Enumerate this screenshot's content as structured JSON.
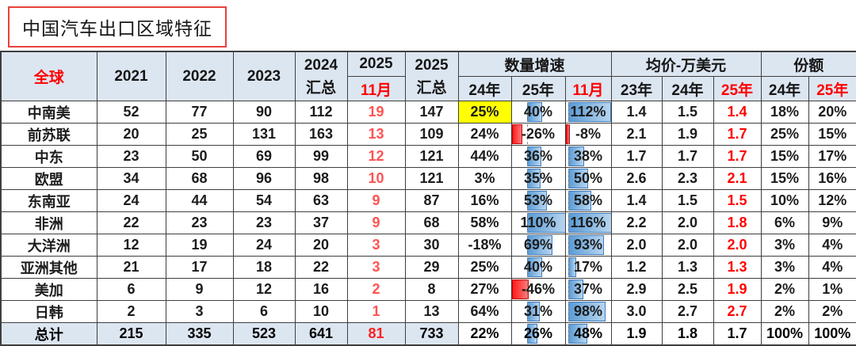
{
  "title": "中国汽车出口区域特征",
  "colors": {
    "header_bg": "#dce6f1",
    "border": "#3f3f3f",
    "red": "#ff0000",
    "soft_red": "#ff5252",
    "bar_blue": "#5b9bd5",
    "bar_blue_light": "#b7d5ef",
    "bar_border": "#3e7cc0",
    "bar_red": "#ff1a1a",
    "highlight": "#ffff00",
    "title_border": "#e8413c"
  },
  "chart_data": {
    "type": "table",
    "title": "中国汽车出口区域特征",
    "header": {
      "region": "全球",
      "y2021": "2021",
      "y2022": "2022",
      "y2023": "2023",
      "c2024_l1": "2024",
      "c2024_l2": "汇总",
      "c2025nov_l1": "2025",
      "c2025nov_l2": "11月",
      "c2025_l1": "2025",
      "c2025_l2": "汇总",
      "growth_group": "数量增速",
      "growth_cols": [
        "24年",
        "25年",
        "11月"
      ],
      "price_group": "均价-万美元",
      "price_cols": [
        "23年",
        "24年",
        "25年"
      ],
      "share_group": "份额",
      "share_cols": [
        "24年",
        "25年"
      ]
    },
    "bar_ranges": {
      "g25": {
        "min": -46,
        "max": 110
      },
      "gNov": {
        "min": -8,
        "max": 116
      }
    },
    "rows": [
      {
        "region": "中南美",
        "y2021": "52",
        "y2022": "77",
        "y2023": "90",
        "y2024": "112",
        "nov": "19",
        "y2025": "147",
        "g24": "25%",
        "g25": "40%",
        "gNov": "112%",
        "p23": "1.4",
        "p24": "1.5",
        "p25": "1.4",
        "s24": "18%",
        "s25": "20%",
        "hl_g24": true
      },
      {
        "region": "前苏联",
        "y2021": "20",
        "y2022": "25",
        "y2023": "131",
        "y2024": "163",
        "nov": "13",
        "y2025": "109",
        "g24": "24%",
        "g25": "-26%",
        "gNov": "-8%",
        "p23": "2.1",
        "p24": "1.9",
        "p25": "1.7",
        "s24": "25%",
        "s25": "15%"
      },
      {
        "region": "中东",
        "y2021": "23",
        "y2022": "50",
        "y2023": "69",
        "y2024": "99",
        "nov": "12",
        "y2025": "121",
        "g24": "44%",
        "g25": "36%",
        "gNov": "38%",
        "p23": "1.7",
        "p24": "1.7",
        "p25": "1.7",
        "s24": "15%",
        "s25": "17%"
      },
      {
        "region": "欧盟",
        "y2021": "34",
        "y2022": "68",
        "y2023": "96",
        "y2024": "98",
        "nov": "10",
        "y2025": "121",
        "g24": "3%",
        "g25": "35%",
        "gNov": "50%",
        "p23": "2.6",
        "p24": "2.3",
        "p25": "2.1",
        "s24": "15%",
        "s25": "16%"
      },
      {
        "region": "东南亚",
        "y2021": "24",
        "y2022": "44",
        "y2023": "54",
        "y2024": "63",
        "nov": "9",
        "y2025": "87",
        "g24": "16%",
        "g25": "53%",
        "gNov": "58%",
        "p23": "1.4",
        "p24": "1.5",
        "p25": "1.5",
        "s24": "10%",
        "s25": "12%"
      },
      {
        "region": "非洲",
        "y2021": "22",
        "y2022": "23",
        "y2023": "23",
        "y2024": "37",
        "nov": "9",
        "y2025": "68",
        "g24": "58%",
        "g25": "110%",
        "gNov": "116%",
        "p23": "2.2",
        "p24": "2.0",
        "p25": "1.8",
        "s24": "6%",
        "s25": "9%"
      },
      {
        "region": "大洋洲",
        "y2021": "12",
        "y2022": "19",
        "y2023": "24",
        "y2024": "20",
        "nov": "3",
        "y2025": "30",
        "g24": "-18%",
        "g25": "69%",
        "gNov": "93%",
        "p23": "2.0",
        "p24": "2.0",
        "p25": "2.0",
        "s24": "3%",
        "s25": "4%"
      },
      {
        "region": "亚洲其他",
        "y2021": "21",
        "y2022": "17",
        "y2023": "18",
        "y2024": "22",
        "nov": "3",
        "y2025": "29",
        "g24": "25%",
        "g25": "40%",
        "gNov": "17%",
        "p23": "1.2",
        "p24": "1.3",
        "p25": "1.3",
        "s24": "3%",
        "s25": "4%"
      },
      {
        "region": "美加",
        "y2021": "6",
        "y2022": "9",
        "y2023": "12",
        "y2024": "16",
        "nov": "2",
        "y2025": "8",
        "g24": "27%",
        "g25": "-46%",
        "gNov": "37%",
        "p23": "2.9",
        "p24": "2.5",
        "p25": "1.9",
        "s24": "2%",
        "s25": "1%"
      },
      {
        "region": "日韩",
        "y2021": "2",
        "y2022": "3",
        "y2023": "6",
        "y2024": "10",
        "nov": "1",
        "y2025": "13",
        "g24": "64%",
        "g25": "31%",
        "gNov": "98%",
        "p23": "3.0",
        "p24": "2.7",
        "p25": "2.7",
        "s24": "2%",
        "s25": "2%"
      },
      {
        "region": "总计",
        "y2021": "215",
        "y2022": "335",
        "y2023": "523",
        "y2024": "641",
        "nov": "81",
        "y2025": "733",
        "g24": "22%",
        "g25": "26%",
        "gNov": "48%",
        "p23": "1.9",
        "p24": "1.8",
        "p25": "1.7",
        "s24": "100%",
        "s25": "100%",
        "total": true
      }
    ]
  }
}
